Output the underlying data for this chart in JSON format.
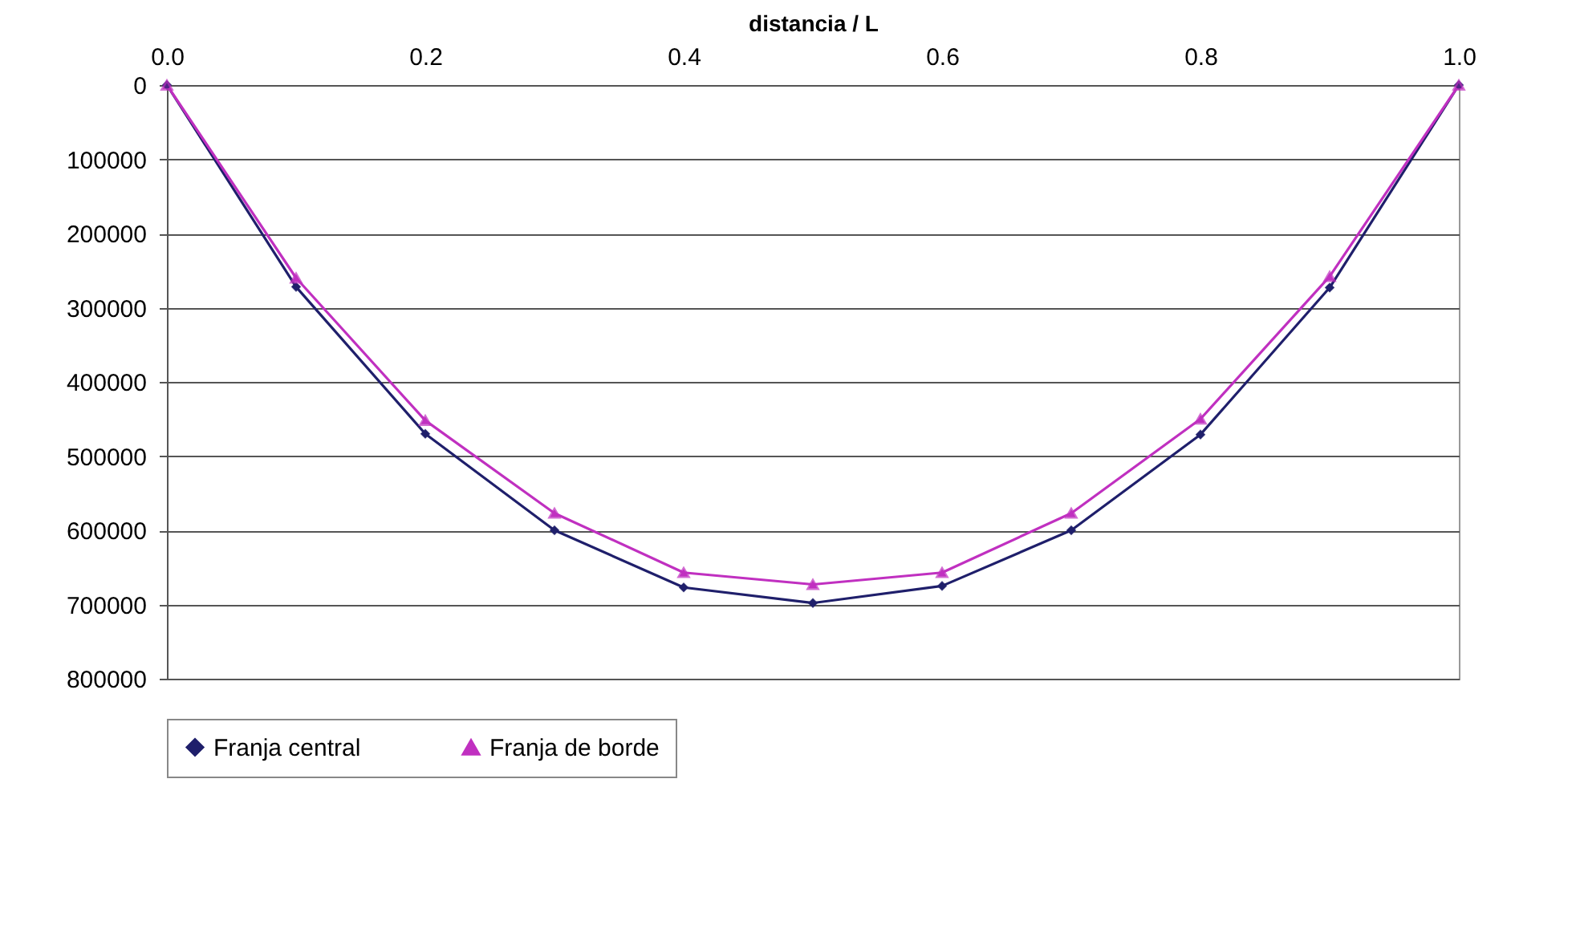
{
  "chart_data": {
    "type": "line",
    "xlabel": "distancia / L",
    "x": [
      0,
      0.1,
      0.2,
      0.3,
      0.4,
      0.5,
      0.6,
      0.7,
      0.8,
      0.9,
      1.0
    ],
    "series": [
      {
        "name": "Franja central",
        "color": "#1f1f6b",
        "marker": "diamond",
        "values": [
          0,
          272000,
          470000,
          600000,
          677000,
          698000,
          675000,
          600000,
          471000,
          273000,
          0
        ]
      },
      {
        "name": "Franja de borde",
        "color": "#c030c0",
        "marker": "triangle",
        "values": [
          0,
          260000,
          452000,
          577000,
          657000,
          673000,
          657000,
          577000,
          450000,
          258000,
          0
        ]
      }
    ],
    "xlim": [
      0,
      1.0
    ],
    "xticks": [
      {
        "value": 0,
        "label": "0.0"
      },
      {
        "value": 0.2,
        "label": "0.2"
      },
      {
        "value": 0.4,
        "label": "0.4"
      },
      {
        "value": 0.6,
        "label": "0.6"
      },
      {
        "value": 0.8,
        "label": "0.8"
      },
      {
        "value": 1.0,
        "label": "1.0"
      }
    ],
    "ylim": [
      800000,
      0
    ],
    "yticks": [
      0,
      100000,
      200000,
      300000,
      400000,
      500000,
      600000,
      700000,
      800000
    ],
    "grid": "y",
    "legend": "bottom",
    "line_style": "solid"
  }
}
